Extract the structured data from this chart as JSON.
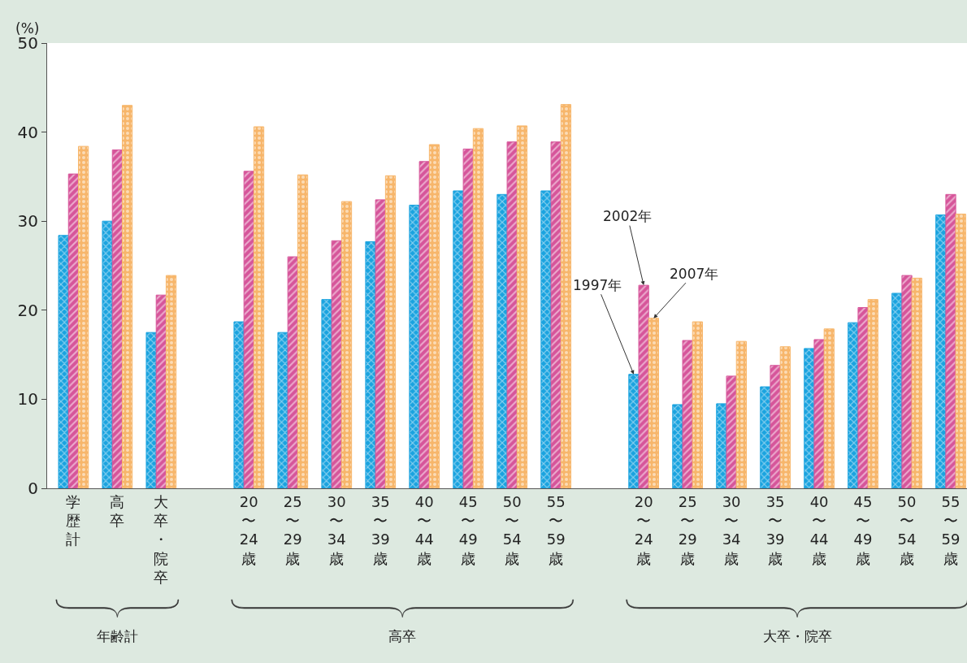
{
  "chart_data": {
    "type": "bar",
    "ylabel": "(%)",
    "categories": [
      "学歴計",
      "高卒",
      "大卒・院卒",
      null,
      "20〜24歳",
      "25〜29歳",
      "30〜34歳",
      "35〜39歳",
      "40〜44歳",
      "45〜49歳",
      "50〜54歳",
      "55〜59歳",
      null,
      "20〜24歳",
      "25〜29歳",
      "30〜34歳",
      "35〜39歳",
      "40〜44歳",
      "45〜49歳",
      "50〜54歳",
      "55〜59歳"
    ],
    "series": [
      {
        "name": "1997年",
        "color": "#1aa3df",
        "values": [
          28.4,
          30.0,
          17.5,
          null,
          18.7,
          17.5,
          21.2,
          27.7,
          31.8,
          33.4,
          33.0,
          33.4,
          null,
          12.8,
          9.4,
          9.5,
          11.4,
          15.7,
          18.6,
          21.9,
          30.7
        ]
      },
      {
        "name": "2002年",
        "color": "#d6559a",
        "values": [
          35.3,
          38.0,
          21.7,
          null,
          35.6,
          26.0,
          27.8,
          32.4,
          36.7,
          38.1,
          38.9,
          38.9,
          null,
          22.8,
          16.6,
          12.6,
          13.8,
          16.7,
          20.3,
          23.9,
          33.0
        ]
      },
      {
        "name": "2007年",
        "color": "#f7b66b",
        "values": [
          38.4,
          43.0,
          23.9,
          null,
          40.6,
          35.2,
          32.2,
          35.1,
          38.6,
          40.4,
          40.7,
          43.1,
          null,
          19.1,
          18.7,
          16.5,
          15.9,
          17.9,
          21.2,
          23.6,
          30.8
        ]
      }
    ],
    "ylim": [
      0,
      50
    ],
    "yticks": [
      0,
      10,
      20,
      30,
      40,
      50
    ],
    "legend": false,
    "annotations": [
      "年齢計",
      "高卒",
      "大卒・院卒"
    ]
  }
}
